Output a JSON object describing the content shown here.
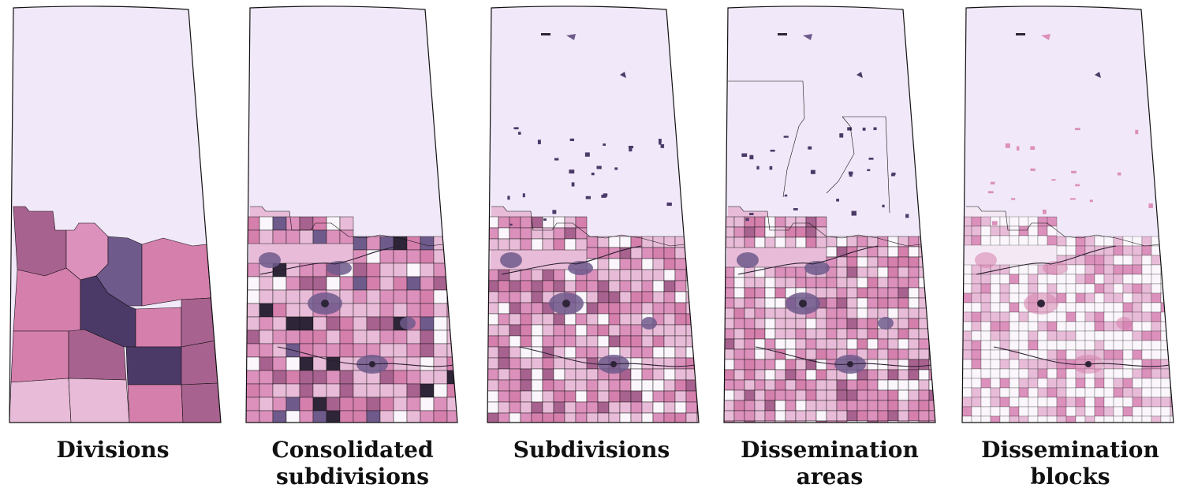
{
  "figure": {
    "panels": [
      {
        "id": "divisions",
        "title_lines": [
          "Divisions"
        ],
        "detail_level": 1
      },
      {
        "id": "consolidated-subdivisions",
        "title_lines": [
          "Consolidated",
          "subdivisions"
        ],
        "detail_level": 2
      },
      {
        "id": "subdivisions",
        "title_lines": [
          "Subdivisions"
        ],
        "detail_level": 3
      },
      {
        "id": "dissemination-areas",
        "title_lines": [
          "Dissemination",
          "areas"
        ],
        "detail_level": 4
      },
      {
        "id": "dissemination-blocks",
        "title_lines": [
          "Dissemination",
          "blocks"
        ],
        "detail_level": 5
      }
    ]
  },
  "colors": {
    "empty": "#f1e9f9",
    "outline": "#111111",
    "palette": [
      "#f4e8f4",
      "#e8bcd8",
      "#dc90bc",
      "#d57fad",
      "#a8628f",
      "#8b5a8b",
      "#6f5a8c",
      "#4b3a68",
      "#2e2538"
    ]
  }
}
